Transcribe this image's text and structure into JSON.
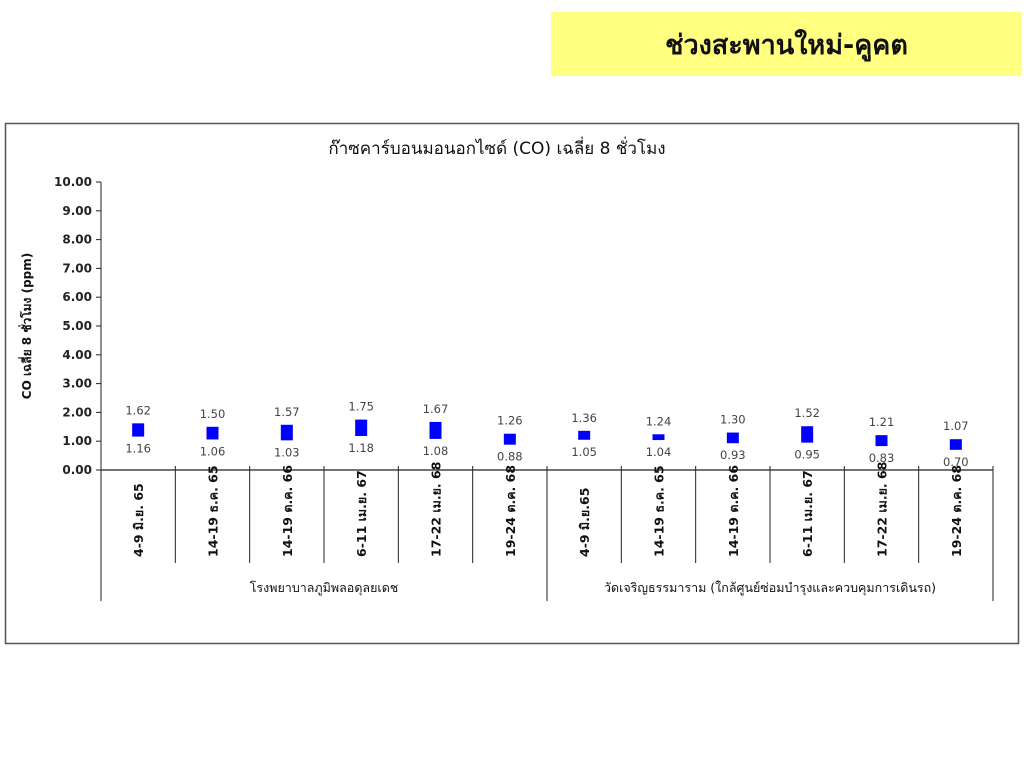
{
  "header": {
    "title": "ช่วงสะพานใหม่-คูคต",
    "background": "#ffff80"
  },
  "chart_data": {
    "type": "bar",
    "subtype": "floating-range",
    "title": "ก๊าซคาร์บอนมอนอกไซด์ (CO) เฉลี่ย 8 ชั่วโมง",
    "ylabel": "CO เฉลี่ย 8 ชั่วโมง (ppm)",
    "xlabel": "",
    "ylim": [
      0,
      10
    ],
    "yticks": [
      "0.00",
      "1.00",
      "2.00",
      "3.00",
      "4.00",
      "5.00",
      "6.00",
      "7.00",
      "8.00",
      "9.00",
      "10.00"
    ],
    "grid": false,
    "bar_color": "#0000ff",
    "groups": [
      {
        "label": "โรงพยาบาลภูมิพลอดุลยเดช",
        "count": 6
      },
      {
        "label": "วัดเจริญธรรมาราม (ใกล้ศูนย์ซ่อมบำรุงและควบคุมการเดินรถ)",
        "count": 6
      }
    ],
    "categories": [
      "4-9 มิ.ย. 65",
      "14-19 ธ.ค. 65",
      "14-19 ต.ค. 66",
      "6-11 เม.ย. 67",
      "17-22 เม.ย. 68",
      "19-24 ต.ค. 68",
      "4-9 มิ.ย.65",
      "14-19 ธ.ค. 65",
      "14-19 ต.ค. 66",
      "6-11 เม.ย. 67",
      "17-22 เม.ย. 68",
      "19-24 ต.ค. 68"
    ],
    "series": [
      {
        "key": "max",
        "values": [
          1.62,
          1.5,
          1.57,
          1.75,
          1.67,
          1.26,
          1.36,
          1.24,
          1.3,
          1.52,
          1.21,
          1.07
        ]
      },
      {
        "key": "min",
        "values": [
          1.16,
          1.06,
          1.03,
          1.18,
          1.08,
          0.88,
          1.05,
          1.04,
          0.93,
          0.95,
          0.83,
          0.7
        ]
      }
    ]
  }
}
